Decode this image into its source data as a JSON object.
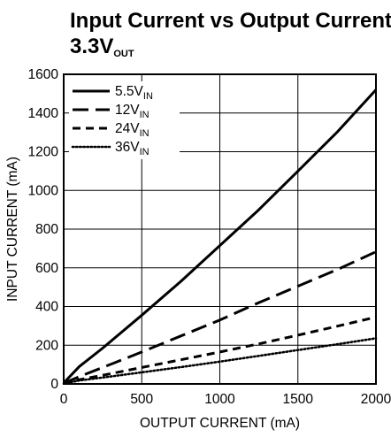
{
  "chart_data": {
    "type": "line",
    "title": {
      "main": "Input Current vs Output Current,",
      "line2_prefix": "3.3V",
      "line2_sub": "OUT"
    },
    "xlabel": "OUTPUT CURRENT (mA)",
    "ylabel": "INPUT CURRENT (mA)",
    "xlim": [
      0,
      2000
    ],
    "ylim": [
      0,
      1600
    ],
    "xticks": [
      0,
      500,
      1000,
      1500,
      2000
    ],
    "yticks": [
      0,
      200,
      400,
      600,
      800,
      1000,
      1200,
      1400,
      1600
    ],
    "xtick_labels": [
      "0",
      "500",
      "1000",
      "1500",
      "2000"
    ],
    "ytick_labels": [
      "0",
      "200",
      "400",
      "600",
      "800",
      "1000",
      "1200",
      "1400",
      "1600"
    ],
    "grid": true,
    "legend_position": "top-left",
    "series": [
      {
        "label_prefix": "5.5V",
        "label_sub": "IN",
        "dash": "solid",
        "x": [
          0,
          100,
          250,
          500,
          750,
          1000,
          1250,
          1500,
          1750,
          2000
        ],
        "y": [
          5,
          90,
          185,
          355,
          530,
          715,
          900,
          1100,
          1300,
          1520
        ]
      },
      {
        "label_prefix": "12V",
        "label_sub": "IN",
        "dash": "long-dash",
        "x": [
          0,
          100,
          250,
          500,
          750,
          1000,
          1250,
          1500,
          1750,
          2000
        ],
        "y": [
          3,
          38,
          85,
          165,
          248,
          330,
          420,
          505,
          590,
          683
        ]
      },
      {
        "label_prefix": "24V",
        "label_sub": "IN",
        "dash": "short-dash",
        "x": [
          0,
          100,
          250,
          500,
          750,
          1000,
          1250,
          1500,
          1750,
          2000
        ],
        "y": [
          2,
          22,
          45,
          85,
          125,
          165,
          207,
          252,
          298,
          345
        ]
      },
      {
        "label_prefix": "36V",
        "label_sub": "IN",
        "dash": "dotted",
        "x": [
          0,
          100,
          250,
          500,
          750,
          1000,
          1250,
          1500,
          1750,
          2000
        ],
        "y": [
          2,
          18,
          33,
          60,
          87,
          115,
          145,
          175,
          205,
          236
        ]
      }
    ]
  }
}
